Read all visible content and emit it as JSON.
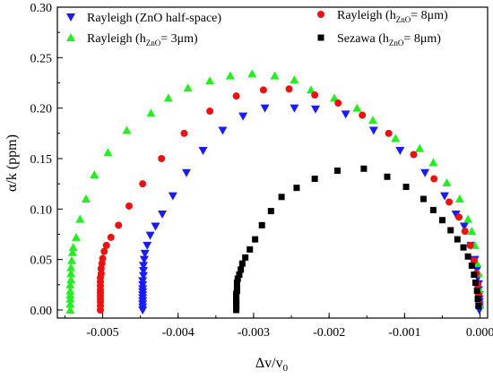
{
  "chart_data": {
    "type": "scatter",
    "title": "",
    "xlabel": {
      "main": "Δv/v",
      "sub": "0"
    },
    "ylabel": "α/k (ppm)",
    "xlim": [
      -0.0056,
      0.0001
    ],
    "ylim": [
      -0.008,
      0.3
    ],
    "x_ticks": [
      -0.005,
      -0.004,
      -0.003,
      -0.002,
      -0.001,
      0.0
    ],
    "x_tick_labels": [
      "-0.005",
      "-0.004",
      "-0.003",
      "-0.002",
      "-0.001",
      "0.000"
    ],
    "y_ticks": [
      0.0,
      0.05,
      0.1,
      0.15,
      0.2,
      0.25,
      0.3
    ],
    "y_tick_labels": [
      "0.00",
      "0.05",
      "0.10",
      "0.15",
      "0.20",
      "0.25",
      "0.30"
    ],
    "grid": false,
    "legend_placement": "top",
    "series": [
      {
        "name": "Rayleigh (ZnO half-space)",
        "legend": {
          "pre": "Rayleigh (ZnO half-space)",
          "sub": "",
          "post": ""
        },
        "marker": "triangle-down",
        "color": "#1a1aff",
        "x": [
          -0.00447,
          -0.00447,
          -0.00447,
          -0.00447,
          -0.00447,
          -0.00447,
          -0.00447,
          -0.00447,
          -0.00447,
          -0.00447,
          -0.00446,
          -0.00446,
          -0.00446,
          -0.00445,
          -0.00444,
          -0.00441,
          -0.00437,
          -0.0043,
          -0.00421,
          -0.00407,
          -0.00389,
          -0.00367,
          -0.00341,
          -0.00314,
          -0.00285,
          -0.00246,
          -0.00218,
          -0.00178,
          -0.00141,
          -0.00106,
          -0.00073,
          -0.00047,
          -0.00032,
          -0.00021,
          -0.00012,
          -7e-05,
          -4e-05,
          -3e-05,
          -2e-05,
          -2e-05,
          -1e-05,
          -1e-05,
          -1e-05,
          -1e-05,
          -1e-05,
          -1e-05,
          -1e-05
        ],
        "y": [
          0.0,
          0.003,
          0.006,
          0.009,
          0.012,
          0.015,
          0.018,
          0.021,
          0.025,
          0.029,
          0.034,
          0.039,
          0.044,
          0.05,
          0.056,
          0.064,
          0.074,
          0.083,
          0.095,
          0.113,
          0.136,
          0.158,
          0.178,
          0.192,
          0.2,
          0.2,
          0.199,
          0.194,
          0.178,
          0.158,
          0.136,
          0.113,
          0.095,
          0.083,
          0.064,
          0.05,
          0.04,
          0.032,
          0.026,
          0.02,
          0.015,
          0.011,
          0.008,
          0.005,
          0.003,
          0.001,
          0.0
        ]
      },
      {
        "name": "Rayleigh (hZnO= 3μm)",
        "legend": {
          "pre": "Rayleigh  (h",
          "sub": "ZnO",
          "post": "= 3μm)"
        },
        "marker": "triangle-up",
        "color": "#22ee22",
        "x": [
          -0.00543,
          -0.00543,
          -0.00543,
          -0.00543,
          -0.00543,
          -0.00543,
          -0.00542,
          -0.00542,
          -0.00542,
          -0.00541,
          -0.0054,
          -0.00539,
          -0.00535,
          -0.0053,
          -0.00522,
          -0.00511,
          -0.00493,
          -0.00468,
          -0.00436,
          -0.00413,
          -0.00387,
          -0.00358,
          -0.00331,
          -0.00302,
          -0.00272,
          -0.00246,
          -0.00224,
          -0.00193,
          -0.00163,
          -0.00142,
          -0.00112,
          -0.0008,
          -0.00062,
          -0.00044,
          -0.00027,
          -0.00016,
          -0.00011,
          -7e-05,
          -4e-05,
          -2e-05,
          -1e-05,
          0.0
        ],
        "y": [
          0.0,
          0.006,
          0.011,
          0.015,
          0.019,
          0.025,
          0.03,
          0.036,
          0.042,
          0.049,
          0.057,
          0.062,
          0.072,
          0.09,
          0.11,
          0.134,
          0.156,
          0.178,
          0.195,
          0.21,
          0.22,
          0.227,
          0.232,
          0.234,
          0.232,
          0.228,
          0.218,
          0.21,
          0.2,
          0.188,
          0.17,
          0.16,
          0.146,
          0.126,
          0.11,
          0.09,
          0.078,
          0.064,
          0.046,
          0.036,
          0.02,
          0.005
        ]
      },
      {
        "name": "Rayleigh (hZnO= 8μm)",
        "legend": {
          "pre": "Rayleigh  (h",
          "sub": "ZnO",
          "post": "= 8μm)"
        },
        "marker": "circle",
        "color": "#ee1111",
        "x": [
          -0.00503,
          -0.00503,
          -0.00503,
          -0.00503,
          -0.00503,
          -0.00503,
          -0.00503,
          -0.00503,
          -0.00503,
          -0.00503,
          -0.00502,
          -0.00502,
          -0.00501,
          -0.005,
          -0.00498,
          -0.00495,
          -0.00489,
          -0.00479,
          -0.00465,
          -0.00447,
          -0.00422,
          -0.00392,
          -0.00358,
          -0.00323,
          -0.00287,
          -0.00253,
          -0.00219,
          -0.00188,
          -0.00156,
          -0.00121,
          -0.00088,
          -0.00061,
          -0.00041,
          -0.00028,
          -0.0002,
          -0.00013,
          -8e-05,
          -5e-05,
          -3e-05,
          -2e-05,
          -1e-05
        ],
        "y": [
          0.0,
          0.004,
          0.008,
          0.011,
          0.014,
          0.017,
          0.02,
          0.024,
          0.028,
          0.032,
          0.036,
          0.041,
          0.046,
          0.051,
          0.058,
          0.064,
          0.072,
          0.084,
          0.103,
          0.125,
          0.15,
          0.175,
          0.197,
          0.212,
          0.218,
          0.219,
          0.213,
          0.205,
          0.193,
          0.175,
          0.154,
          0.13,
          0.107,
          0.092,
          0.078,
          0.064,
          0.049,
          0.036,
          0.025,
          0.015,
          0.006
        ]
      },
      {
        "name": "Sezawa (hZnO= 8μm)",
        "legend": {
          "pre": "Sezawa (h",
          "sub": "ZnO",
          "post": "= 8μm)"
        },
        "marker": "square",
        "color": "#000000",
        "x": [
          -0.00323,
          -0.00323,
          -0.00323,
          -0.00323,
          -0.00323,
          -0.00323,
          -0.00323,
          -0.00323,
          -0.00322,
          -0.00322,
          -0.00322,
          -0.00321,
          -0.00319,
          -0.00317,
          -0.00315,
          -0.00311,
          -0.00305,
          -0.00298,
          -0.00289,
          -0.00277,
          -0.00263,
          -0.00243,
          -0.00219,
          -0.00189,
          -0.00154,
          -0.00123,
          -0.00098,
          -0.00075,
          -0.00062,
          -0.0005,
          -0.00039,
          -0.0003,
          -0.00022,
          -0.00016,
          -0.00011,
          -8e-05,
          -6e-05,
          -4e-05,
          -3e-05,
          -2e-05
        ],
        "y": [
          0.0,
          0.002,
          0.004,
          0.006,
          0.008,
          0.01,
          0.013,
          0.016,
          0.019,
          0.023,
          0.027,
          0.031,
          0.035,
          0.04,
          0.046,
          0.052,
          0.06,
          0.07,
          0.084,
          0.098,
          0.112,
          0.121,
          0.13,
          0.138,
          0.14,
          0.132,
          0.122,
          0.11,
          0.099,
          0.089,
          0.079,
          0.07,
          0.062,
          0.053,
          0.044,
          0.035,
          0.027,
          0.019,
          0.011,
          0.004
        ]
      }
    ]
  }
}
